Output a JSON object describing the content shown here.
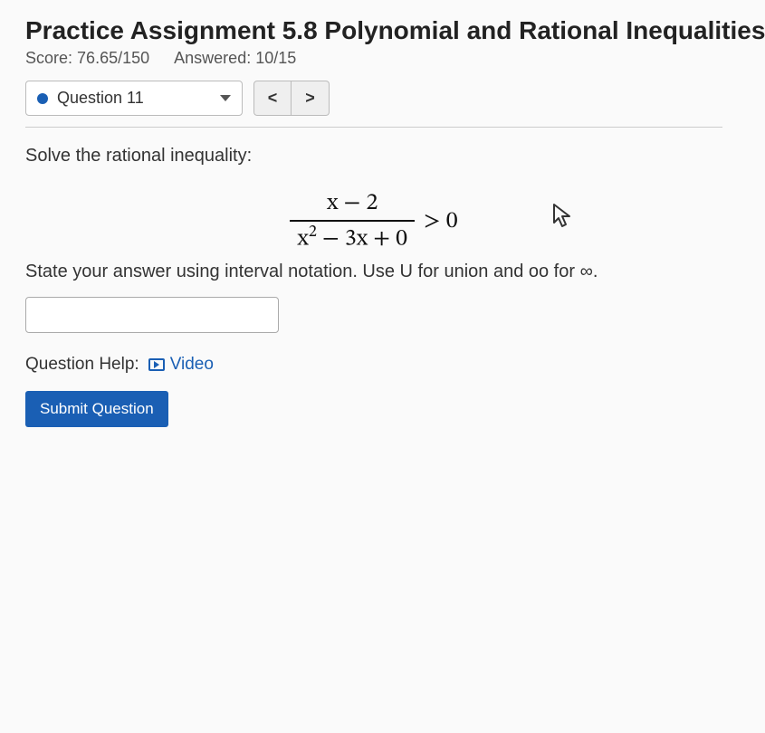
{
  "header": {
    "title": "Practice Assignment 5.8 Polynomial and Rational Inequalities",
    "score_label": "Score:",
    "score_value": "76.65/150",
    "answered_label": "Answered:",
    "answered_value": "10/15"
  },
  "question_selector": {
    "label": "Question 11",
    "dot_color": "#1a5fb4"
  },
  "nav": {
    "prev": "<",
    "next": ">"
  },
  "problem": {
    "prompt": "Solve the rational inequality:",
    "numerator": "x − 2",
    "denominator_html": "x<span class='sup'>2</span> − 3x + 0",
    "relation": ">",
    "rhs": "0",
    "instruction": "State your answer using interval notation. Use U for union and oo for ∞."
  },
  "answer": {
    "value": "",
    "placeholder": ""
  },
  "help": {
    "label": "Question Help:",
    "video": "Video"
  },
  "submit": {
    "label": "Submit Question"
  },
  "colors": {
    "primary": "#1a5fb4",
    "border": "#bbbbbb",
    "bg": "#fafafa",
    "btn_bg": "#efefef",
    "text": "#333333"
  }
}
